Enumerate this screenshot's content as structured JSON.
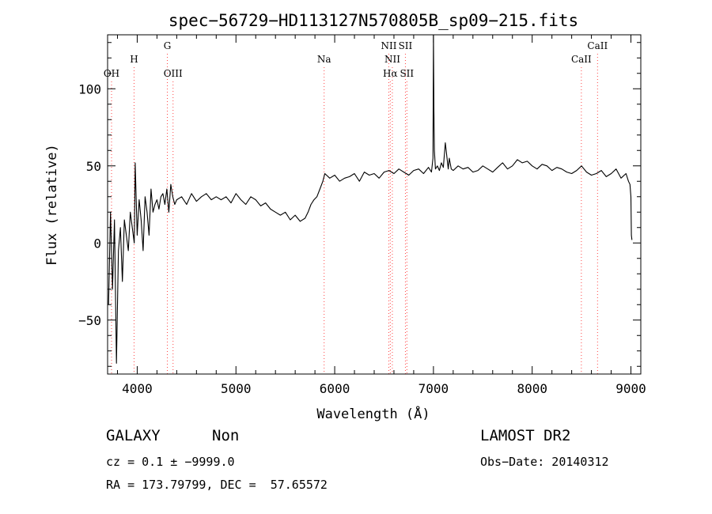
{
  "chart_data": {
    "type": "line",
    "title": "spec−56729−HD113127N570805B_sp09−215.fits",
    "xlabel": "Wavelength (Å)",
    "ylabel": "Flux (relative)",
    "xlim": [
      3700,
      9100
    ],
    "ylim": [
      -85,
      135
    ],
    "xticks": [
      4000,
      5000,
      6000,
      7000,
      8000,
      9000
    ],
    "yticks": [
      -50,
      0,
      50,
      100
    ],
    "x_minor_step": 200,
    "y_minor_step": 10,
    "line_color": "#000000",
    "marker_color": "#ff4444",
    "series": [
      {
        "x": [
          3710,
          3730,
          3750,
          3770,
          3790,
          3810,
          3830,
          3850,
          3870,
          3890,
          3910,
          3930,
          3950,
          3970,
          3980,
          4000,
          4020,
          4040,
          4060,
          4080,
          4100,
          4120,
          4140,
          4160,
          4180,
          4200,
          4220,
          4240,
          4260,
          4280,
          4300,
          4320,
          4340,
          4360,
          4380,
          4400,
          4450,
          4500,
          4550,
          4600,
          4650,
          4700,
          4750,
          4800,
          4850,
          4900,
          4950,
          5000,
          5050,
          5100,
          5150,
          5200,
          5250,
          5300,
          5350,
          5400,
          5450,
          5500,
          5550,
          5600,
          5650,
          5700,
          5730,
          5760,
          5790,
          5820,
          5850,
          5880,
          5900,
          5950,
          6000,
          6050,
          6100,
          6150,
          6200,
          6250,
          6300,
          6350,
          6400,
          6450,
          6500,
          6550,
          6600,
          6650,
          6700,
          6750,
          6800,
          6850,
          6900,
          6950,
          6980,
          6995,
          7000,
          7005,
          7010,
          7020,
          7040,
          7060,
          7080,
          7100,
          7120,
          7150,
          7160,
          7180,
          7200,
          7250,
          7300,
          7350,
          7400,
          7450,
          7500,
          7550,
          7600,
          7650,
          7700,
          7750,
          7800,
          7850,
          7900,
          7950,
          8000,
          8050,
          8100,
          8150,
          8200,
          8250,
          8300,
          8350,
          8400,
          8450,
          8500,
          8550,
          8600,
          8650,
          8700,
          8750,
          8800,
          8850,
          8900,
          8950,
          8975,
          8990,
          9000,
          9005,
          9010
        ],
        "y": [
          -40,
          20,
          -30,
          15,
          -78,
          -5,
          10,
          -25,
          15,
          5,
          -5,
          20,
          10,
          0,
          52,
          5,
          28,
          15,
          -5,
          30,
          20,
          5,
          35,
          20,
          25,
          28,
          22,
          30,
          32,
          25,
          35,
          20,
          38,
          30,
          25,
          28,
          30,
          25,
          32,
          27,
          30,
          32,
          28,
          30,
          28,
          30,
          26,
          32,
          28,
          25,
          30,
          28,
          24,
          26,
          22,
          20,
          18,
          20,
          15,
          18,
          14,
          16,
          20,
          25,
          28,
          30,
          35,
          40,
          45,
          42,
          44,
          40,
          42,
          43,
          45,
          40,
          46,
          44,
          45,
          42,
          46,
          47,
          45,
          48,
          46,
          44,
          47,
          48,
          45,
          49,
          46,
          55,
          135,
          85,
          60,
          48,
          50,
          47,
          52,
          49,
          65,
          48,
          55,
          48,
          47,
          50,
          48,
          49,
          46,
          47,
          50,
          48,
          46,
          49,
          52,
          48,
          50,
          54,
          52,
          53,
          50,
          48,
          51,
          50,
          47,
          49,
          48,
          46,
          45,
          47,
          50,
          46,
          44,
          45,
          47,
          43,
          45,
          48,
          42,
          45,
          40,
          38,
          30,
          5,
          2
        ]
      }
    ],
    "line_markers": [
      {
        "label": "OH",
        "x": 3740,
        "row": 3
      },
      {
        "label": "H",
        "x": 3968,
        "row": 1
      },
      {
        "label": "G",
        "x": 4305,
        "row": 0
      },
      {
        "label": "OIII",
        "x": 4363,
        "row": 3
      },
      {
        "label": "Na",
        "x": 5893,
        "row": 1
      },
      {
        "label": "NII",
        "x": 6548,
        "row": 0
      },
      {
        "label": "SII",
        "x": 6716,
        "row": 0
      },
      {
        "label": "NII",
        "x": 6584,
        "row": 1
      },
      {
        "label": "Hα",
        "x": 6563,
        "row": 3
      },
      {
        "label": "SII",
        "x": 6731,
        "row": 3
      },
      {
        "label": "CaII",
        "x": 8498,
        "row": 1
      },
      {
        "label": "CaII",
        "x": 8662,
        "row": 0
      }
    ]
  },
  "info": {
    "object_class": "GALAXY",
    "subclass": "Non",
    "survey": "LAMOST DR2",
    "redshift": "cz = 0.1 ± −9999.0",
    "obs_date": "Obs−Date: 20140312",
    "coords": "RA = 173.79799, DEC =  57.65572"
  }
}
